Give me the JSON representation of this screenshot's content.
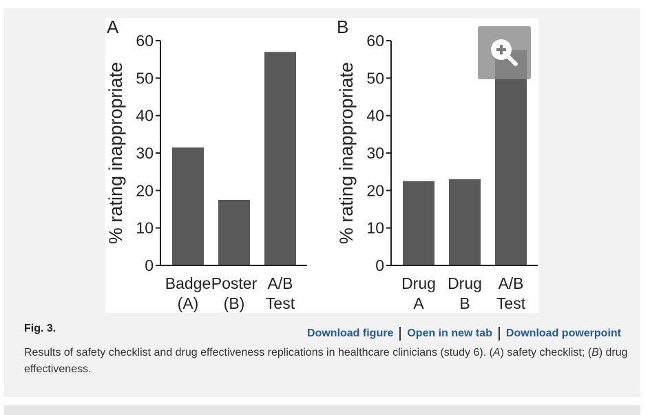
{
  "chart_data": [
    {
      "type": "bar",
      "panel_label": "A",
      "ylabel": "% rating inappropriate",
      "categories": [
        [
          "Badge",
          "(A)"
        ],
        [
          "Poster",
          "(B)"
        ],
        [
          "A/B",
          "Test"
        ]
      ],
      "values": [
        31.5,
        17.5,
        57
      ],
      "ylim": [
        0,
        60
      ],
      "yticks": [
        "0",
        "10",
        "20",
        "30",
        "40",
        "50",
        "60"
      ],
      "bar_color": "#595959"
    },
    {
      "type": "bar",
      "panel_label": "B",
      "ylabel": "% rating inappropriate",
      "categories": [
        [
          "Drug",
          "A"
        ],
        [
          "Drug",
          "B"
        ],
        [
          "A/B",
          "Test"
        ]
      ],
      "values": [
        22.5,
        23,
        57.5
      ],
      "ylim": [
        0,
        60
      ],
      "yticks": [
        "0",
        "10",
        "20",
        "30",
        "40",
        "50",
        "60"
      ],
      "bar_color": "#595959"
    }
  ],
  "figure": {
    "label": "Fig. 3.",
    "zoom_icon": "zoom-in-icon",
    "links": {
      "download_figure": "Download figure",
      "open_new_tab": "Open in new tab",
      "download_powerpoint": "Download powerpoint"
    },
    "caption": {
      "part1": "Results of safety checklist and drug effectiveness replications in healthcare clinicians (study 6). (",
      "a": "A",
      "part2": ") safety checklist; (",
      "b": "B",
      "part3": ") drug effectiveness."
    }
  }
}
